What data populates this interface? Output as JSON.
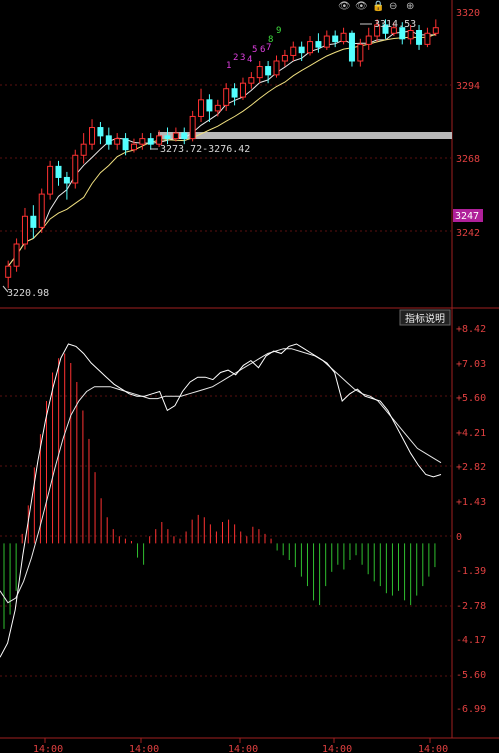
{
  "toolbar_icons": [
    "eye-icon",
    "eye-icon",
    "lock-icon",
    "minus-icon",
    "plus-icon"
  ],
  "toolbar_glyphs": [
    "👁",
    "👁",
    "🔒",
    "⊖",
    "⊕"
  ],
  "indicator_button": "指标说明",
  "price_axis": {
    "ticks": [
      "3320",
      "3294",
      "3268",
      "3242"
    ],
    "current": "3247"
  },
  "macd_axis": {
    "ticks": [
      "+8.42",
      "+7.03",
      "+5.60",
      "+4.21",
      "+2.82",
      "+1.43",
      "0",
      "-1.39",
      "-2.78",
      "-4.17",
      "-5.60",
      "-6.99"
    ]
  },
  "time_axis": [
    "14:00",
    "14:00",
    "14:00",
    "14:00",
    "14:00"
  ],
  "annotations": {
    "high": "3314.53",
    "low": "3220.98",
    "range": "3273.72-3276.42"
  },
  "counts": [
    "1",
    "2",
    "3",
    "4",
    "5",
    "6",
    "7",
    "8",
    "9"
  ],
  "chart_data": {
    "type": "candlestick",
    "price_panel": {
      "ylim": [
        3212,
        3322
      ],
      "candles": [
        [
          3222,
          3226,
          3218,
          3228
        ],
        [
          3226,
          3234,
          3224,
          3236
        ],
        [
          3234,
          3244,
          3232,
          3247
        ],
        [
          3244,
          3240,
          3236,
          3248
        ],
        [
          3240,
          3252,
          3238,
          3254
        ],
        [
          3252,
          3262,
          3250,
          3264
        ],
        [
          3262,
          3258,
          3255,
          3264
        ],
        [
          3258,
          3256,
          3250,
          3260
        ],
        [
          3256,
          3266,
          3254,
          3268
        ],
        [
          3266,
          3270,
          3263,
          3274
        ],
        [
          3270,
          3276,
          3268,
          3279
        ],
        [
          3276,
          3273,
          3270,
          3278
        ],
        [
          3273,
          3270,
          3268,
          3276
        ],
        [
          3270,
          3272,
          3268,
          3274
        ],
        [
          3272,
          3268,
          3266,
          3274
        ],
        [
          3268,
          3270,
          3267,
          3272
        ],
        [
          3270,
          3272,
          3268,
          3274
        ],
        [
          3272,
          3270,
          3268,
          3274
        ],
        [
          3270,
          3273,
          3269,
          3275
        ],
        [
          3273,
          3272,
          3270,
          3276
        ],
        [
          3272,
          3274,
          3271,
          3276
        ],
        [
          3274,
          3272,
          3270,
          3276
        ],
        [
          3272,
          3280,
          3271,
          3282
        ],
        [
          3280,
          3286,
          3278,
          3290
        ],
        [
          3286,
          3282,
          3278,
          3288
        ],
        [
          3282,
          3284,
          3280,
          3286
        ],
        [
          3284,
          3290,
          3282,
          3292
        ],
        [
          3290,
          3287,
          3284,
          3292
        ],
        [
          3287,
          3292,
          3286,
          3294
        ],
        [
          3292,
          3294,
          3290,
          3296
        ],
        [
          3294,
          3298,
          3292,
          3300
        ],
        [
          3298,
          3295,
          3292,
          3300
        ],
        [
          3295,
          3300,
          3294,
          3302
        ],
        [
          3300,
          3302,
          3298,
          3304
        ],
        [
          3302,
          3305,
          3300,
          3307
        ],
        [
          3305,
          3303,
          3300,
          3307
        ],
        [
          3303,
          3307,
          3302,
          3309
        ],
        [
          3307,
          3305,
          3303,
          3310
        ],
        [
          3305,
          3309,
          3304,
          3311
        ],
        [
          3309,
          3307,
          3305,
          3311
        ],
        [
          3307,
          3310,
          3306,
          3312
        ],
        [
          3310,
          3300,
          3298,
          3311
        ],
        [
          3300,
          3306,
          3298,
          3308
        ],
        [
          3306,
          3309,
          3304,
          3312
        ],
        [
          3309,
          3313,
          3307,
          3315
        ],
        [
          3313,
          3310,
          3308,
          3315
        ],
        [
          3310,
          3312,
          3309,
          3314
        ],
        [
          3312,
          3308,
          3306,
          3314
        ],
        [
          3308,
          3311,
          3306,
          3313
        ],
        [
          3311,
          3306,
          3304,
          3313
        ],
        [
          3306,
          3310,
          3305,
          3312
        ],
        [
          3310,
          3312,
          3309,
          3315
        ]
      ]
    },
    "macd_panel": {
      "ylim": [
        -8.2,
        9.2
      ],
      "histogram": [
        -3.6,
        -3.0,
        -2.0,
        0.4,
        1.6,
        3.2,
        4.6,
        6.0,
        7.2,
        7.8,
        8.0,
        7.6,
        6.8,
        5.6,
        4.4,
        3.0,
        1.9,
        1.1,
        0.6,
        0.3,
        0.2,
        0.1,
        -0.6,
        -0.9,
        0.3,
        0.6,
        0.9,
        0.6,
        0.3,
        0.2,
        0.5,
        1.0,
        1.2,
        1.1,
        0.8,
        0.5,
        0.9,
        1.0,
        0.8,
        0.5,
        0.3,
        0.7,
        0.6,
        0.4,
        0.2,
        -0.3,
        -0.5,
        -0.7,
        -1.0,
        -1.4,
        -1.8,
        -2.4,
        -2.6,
        -1.8,
        -1.2,
        -0.9,
        -1.1,
        -0.7,
        -0.5,
        -0.9,
        -1.3,
        -1.6,
        -1.8,
        -2.1,
        -2.2,
        -2.0,
        -2.4,
        -2.6,
        -2.2,
        -1.8,
        -1.4,
        -1.0
      ],
      "dif": [
        -4.8,
        -4.2,
        -2.8,
        -0.5,
        1.5,
        3.5,
        5.2,
        6.6,
        7.8,
        8.4,
        8.3,
        8.0,
        7.6,
        7.3,
        7.0,
        6.7,
        6.5,
        6.3,
        6.2,
        6.2,
        6.3,
        6.4,
        5.6,
        5.8,
        6.4,
        6.8,
        7.0,
        7.0,
        6.9,
        7.2,
        7.3,
        7.1,
        7.5,
        7.7,
        7.4,
        7.9,
        8.1,
        8.0,
        8.3,
        8.4,
        8.2,
        8.0,
        7.8,
        7.6,
        7.2,
        6.0,
        6.3,
        6.5,
        6.2,
        6.1,
        6.0,
        5.6,
        5.0,
        4.4,
        3.8,
        3.3,
        2.9,
        2.8,
        2.9
      ],
      "dea": [
        -2.0,
        -2.5,
        -2.3,
        -1.6,
        -0.6,
        0.6,
        1.9,
        3.2,
        4.4,
        5.4,
        6.0,
        6.4,
        6.6,
        6.6,
        6.6,
        6.5,
        6.4,
        6.3,
        6.2,
        6.1,
        6.1,
        6.2,
        6.2,
        6.2,
        6.3,
        6.4,
        6.5,
        6.6,
        6.8,
        7.0,
        7.2,
        7.4,
        7.6,
        7.8,
        8.0,
        8.1,
        8.2,
        8.2,
        8.1,
        8.0,
        7.9,
        7.7,
        7.4,
        7.1,
        6.8,
        6.5,
        6.3,
        6.2,
        6.0,
        5.6,
        5.2,
        4.8,
        4.4,
        4.0,
        3.8,
        3.6,
        3.4
      ]
    }
  }
}
